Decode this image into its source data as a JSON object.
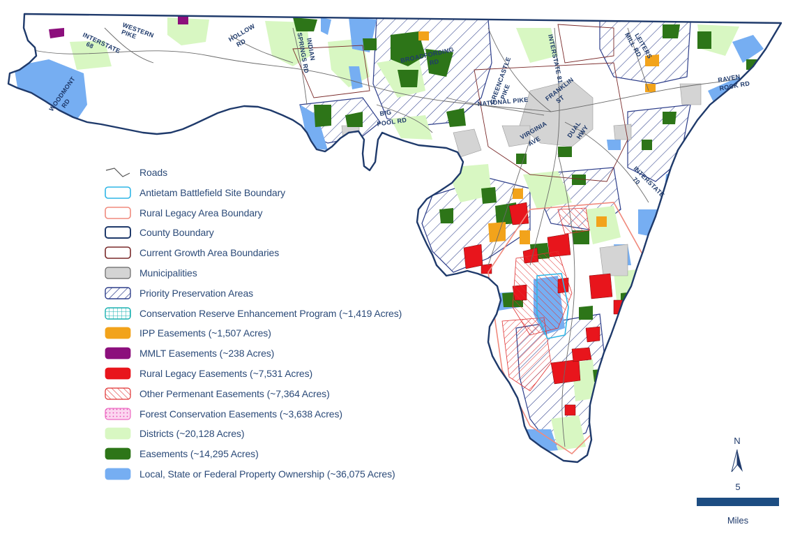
{
  "legend": {
    "items": [
      {
        "label": "Roads",
        "swatch": "roads"
      },
      {
        "label": "Antietam Battlefield Site Boundary",
        "swatch": "antietam",
        "color": "#2fb6e6"
      },
      {
        "label": "Rural Legacy Area Boundary",
        "swatch": "rural-legacy-area",
        "color": "#f08a7d"
      },
      {
        "label": "County Boundary",
        "swatch": "county",
        "color": "#1f3a6b"
      },
      {
        "label": "Current Growth Area Boundaries",
        "swatch": "growth",
        "color": "#7a2a2a"
      },
      {
        "label": "Municipalities",
        "swatch": "municipalities",
        "color": "#d4d4d4"
      },
      {
        "label": "Priority Preservation Areas",
        "swatch": "priority",
        "color": "#2d3e8a"
      },
      {
        "label": "Conservation Reserve Enhancement Program (~1,419 Acres)",
        "swatch": "crep",
        "color": "#19b1b1"
      },
      {
        "label": "IPP Easements (~1,507 Acres)",
        "swatch": "ipp",
        "color": "#f2a31b"
      },
      {
        "label": "MMLT Easements (~238 Acres)",
        "swatch": "mmlt",
        "color": "#8c0f7c"
      },
      {
        "label": "Rural Legacy Easements (~7,531 Acres)",
        "swatch": "rural-legacy",
        "color": "#e8151c"
      },
      {
        "label": "Other Permenant Easements (~7,364 Acres)",
        "swatch": "other",
        "color": "#e03030"
      },
      {
        "label": "Forest Conservation Easements (~3,638 Acres)",
        "swatch": "forest",
        "color": "#e84bb5"
      },
      {
        "label": "Districts (~20,128 Acres)",
        "swatch": "districts",
        "color": "#d8f7c2"
      },
      {
        "label": "Easements (~14,295 Acres)",
        "swatch": "easements",
        "color": "#2d7518"
      },
      {
        "label": "Local, State or Federal Property Ownership (~36,075 Acres)",
        "swatch": "public",
        "color": "#76aef2"
      }
    ]
  },
  "map_labels": {
    "western_pike": [
      "WESTERN",
      "PIKE"
    ],
    "interstate_68": [
      "INTERSTATE",
      "68"
    ],
    "woodmont_rd": [
      "WOODMONT",
      "RD"
    ],
    "hollow_rd": [
      "HOLLOW",
      "RD"
    ],
    "indian_springs_rd": [
      "INDIAN",
      "SPRINGS RD"
    ],
    "broadfording_rd": [
      "BROADFORDING",
      "RD"
    ],
    "greencastle_pike": [
      "GREENCASTLE",
      "PIKE"
    ],
    "interstate_81": "INTERSTATE 81",
    "leiters_mill_rd": [
      "LEITERS",
      "MILL RD"
    ],
    "raven_rock_rd": [
      "RAVEN",
      "ROCK RD"
    ],
    "national_pike": "NATIONAL PIKE",
    "franklin_st": [
      "FRANKLIN",
      "ST"
    ],
    "big_pool_rd": [
      "BIG",
      "POOL RD"
    ],
    "virginia_ave": [
      "VIRGINIA",
      "AVE"
    ],
    "dual_hwy": [
      "DUAL",
      "HWY"
    ],
    "interstate_70": [
      "INTERSTATE",
      "70"
    ]
  },
  "north_arrow": {
    "label": "N"
  },
  "scale_bar": {
    "value": "5",
    "unit": "Miles"
  },
  "colors": {
    "county": "#1f3a6b",
    "public": "#76aef2",
    "easements": "#2d7518",
    "districts": "#d8f7c2",
    "municipalities": "#d4d4d4",
    "rural_legacy": "#e8151c",
    "ipp": "#f2a31b",
    "mmlt": "#8c0f7c",
    "crep": "#19b1b1",
    "forest": "#e84bb5",
    "antietam": "#2fb6e6",
    "priority": "#2d3e8a"
  }
}
